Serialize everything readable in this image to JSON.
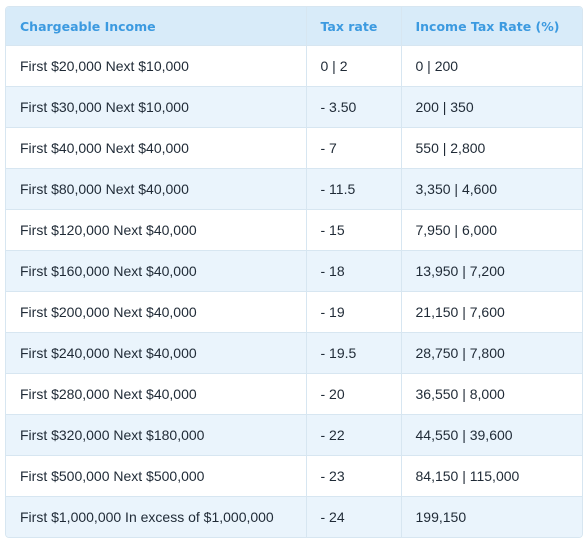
{
  "table": {
    "headers": [
      "Chargeable Income",
      "Tax rate",
      "Income Tax Rate (%)"
    ],
    "rows": [
      [
        "First $20,000 Next $10,000",
        "0 | 2",
        "0 | 200"
      ],
      [
        "First $30,000 Next $10,000",
        "- 3.50",
        "200 | 350"
      ],
      [
        "First $40,000 Next $40,000",
        "- 7",
        "550 | 2,800"
      ],
      [
        "First $80,000 Next $40,000",
        "- 11.5",
        "3,350 | 4,600"
      ],
      [
        "First $120,000 Next $40,000",
        "- 15",
        "7,950 | 6,000"
      ],
      [
        "First $160,000 Next $40,000",
        "- 18",
        "13,950 | 7,200"
      ],
      [
        "First $200,000 Next $40,000",
        "- 19",
        "21,150 | 7,600"
      ],
      [
        "First $240,000 Next $40,000",
        "- 19.5",
        "28,750 | 7,800"
      ],
      [
        "First $280,000 Next $40,000",
        "- 20",
        "36,550 | 8,000"
      ],
      [
        "First $320,000 Next $180,000",
        "- 22",
        "44,550 | 39,600"
      ],
      [
        "First $500,000 Next $500,000",
        "- 23",
        "84,150 | 115,000"
      ],
      [
        "First $1,000,000 In excess of $1,000,000",
        "- 24",
        "199,150"
      ]
    ]
  },
  "colors": {
    "header_bg": "#d8ebf9",
    "header_text": "#3c9ae0",
    "stripe_bg": "#eaf4fc",
    "border": "#d7e6f1",
    "body_text": "#1f2a36"
  }
}
